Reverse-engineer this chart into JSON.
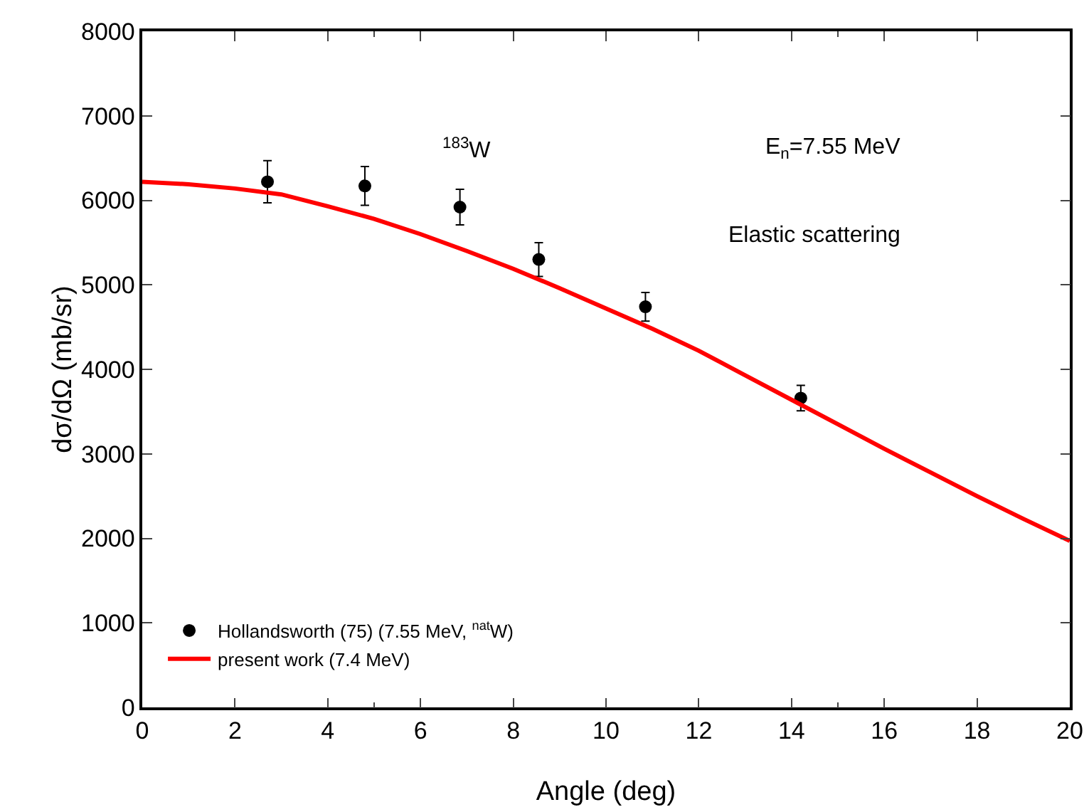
{
  "chart_data": {
    "type": "scatter",
    "xlabel": "Angle (deg)",
    "ylabel": "dσ/dΩ (mb/sr)",
    "annotations": [
      "$^{183}$W",
      "E$_{n}$=7.55 MeV",
      "Elastic scattering"
    ],
    "xlim": [
      0,
      20
    ],
    "xticks": [
      0,
      2,
      4,
      6,
      8,
      10,
      12,
      14,
      16,
      18,
      20
    ],
    "ylim": [
      0,
      8000
    ],
    "yticks": [
      0,
      1000,
      2000,
      3000,
      4000,
      5000,
      6000,
      7000,
      8000
    ],
    "grid": false,
    "legend": "bottom left",
    "series": [
      {
        "name": "Hollandsworth (75) (7.55 MeV, $^{nat}$W)",
        "marker": "circle",
        "color": "#000000",
        "x": [
          2.7,
          4.8,
          6.85,
          8.55,
          10.85,
          14.2
        ],
        "values": [
          6220,
          6170,
          5920,
          5300,
          4740,
          3660
        ],
        "errors": [
          250,
          230,
          210,
          200,
          170,
          150
        ]
      },
      {
        "name": "present work (7.4 MeV)",
        "type": "line",
        "marker": "none",
        "line_style": "solid",
        "color": "#ff0000",
        "x": [
          0,
          1,
          2,
          3,
          4,
          5,
          6,
          7,
          8,
          9,
          10,
          11,
          12,
          13,
          14,
          15,
          16,
          17,
          18,
          19,
          20
        ],
        "values": [
          6220,
          6190,
          6140,
          6070,
          5930,
          5780,
          5600,
          5400,
          5190,
          4960,
          4720,
          4480,
          4220,
          3930,
          3640,
          3350,
          3060,
          2780,
          2500,
          2230,
          1970
        ]
      }
    ]
  }
}
